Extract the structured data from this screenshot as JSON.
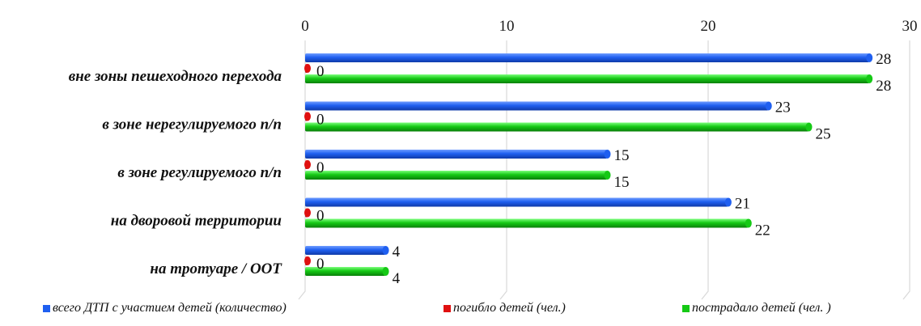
{
  "chart_data": {
    "type": "bar",
    "orientation": "horizontal",
    "categories": [
      "вне зоны пешеходного перехода",
      "в зоне нерегулируемого п/п",
      "в зоне регулируемого п/п",
      "на дворовой территории",
      "на тротуаре / ООТ"
    ],
    "series": [
      {
        "name": "всего ДТП с участием детей (количество)",
        "color": "#1f5ff0",
        "values": [
          28,
          23,
          15,
          21,
          4
        ]
      },
      {
        "name": "погибло детей (чел.)",
        "color": "#e01010",
        "values": [
          0,
          0,
          0,
          0,
          0
        ]
      },
      {
        "name": "пострадало детей (чел. )",
        "color": "#15c915",
        "values": [
          28,
          25,
          15,
          22,
          4
        ]
      }
    ],
    "xlim": [
      0,
      30
    ],
    "x_ticks": [
      "0",
      "10",
      "20",
      "30"
    ],
    "x_axis_position": "top",
    "grid": true,
    "data_labels": true,
    "legend_position": "bottom"
  }
}
